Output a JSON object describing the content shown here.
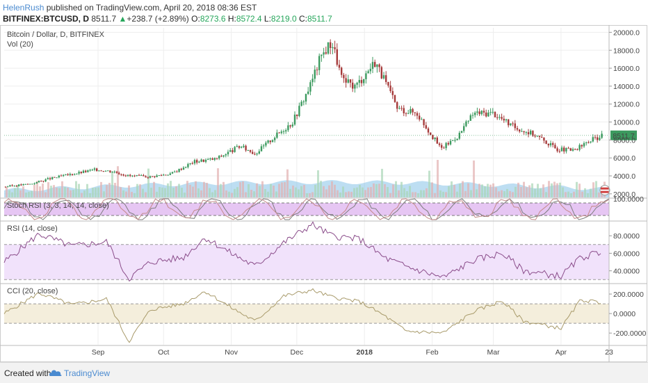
{
  "header": {
    "author": "HelenRush",
    "published": " published on TradingView.com, April 20, 2018 08:36 EST",
    "symbol": "BITFINEX:BTCUSD, D",
    "last": "8511.7",
    "change_arrow": "▲",
    "change": "+238.7 (+2.89%)",
    "o_label": "O:",
    "o_value": "8273.6",
    "h_label": "H:",
    "h_value": "8572.4",
    "l_label": "L:",
    "l_value": "8219.0",
    "c_label": "C:",
    "c_value": "8511.7"
  },
  "colors": {
    "up": "#3c9a5f",
    "down": "#a63a3a",
    "volume_ma": "#87c3e8",
    "stoch_band": "#e6c6f3",
    "rsi_band": "#f1e2fb",
    "cci_band": "#f4eedc",
    "price_tag": "#3c9a5f"
  },
  "chart_data": [
    {
      "type": "candlestick",
      "title": "Bitcoin / Dollar, D, BITFINEX",
      "subtitle": "Vol (20)",
      "xlabel": "",
      "ylabel": "",
      "x_ticks": [
        "Sep",
        "Oct",
        "Nov",
        "Dec",
        "2018",
        "Feb",
        "Mar",
        "Apr",
        "23"
      ],
      "y_ticks": [
        "20000.0",
        "18000.0",
        "16000.0",
        "14000.0",
        "12000.0",
        "10000.0",
        "8000.0",
        "6000.0",
        "4000.0",
        "2000.0"
      ],
      "ylim": [
        1600,
        20500
      ],
      "last_price_label": "8511.7",
      "last_price": 8511.7,
      "series": [
        {
          "name": "close",
          "x": [
            "Jul 20",
            "Aug 1",
            "Aug 10",
            "Aug 20",
            "Aug 31",
            "Sep 8",
            "Sep 15",
            "Sep 25",
            "Oct 5",
            "Oct 15",
            "Oct 25",
            "Nov 5",
            "Nov 12",
            "Nov 20",
            "Nov 29",
            "Dec 7",
            "Dec 12",
            "Dec 17",
            "Dec 22",
            "Dec 28",
            "Jan 6",
            "Jan 16",
            "Jan 25",
            "Feb 5",
            "Feb 13",
            "Feb 20",
            "Mar 1",
            "Mar 10",
            "Mar 20",
            "Mar 30",
            "Apr 7",
            "Apr 14",
            "Apr 20"
          ],
          "values": [
            2800,
            3100,
            3700,
            4200,
            4700,
            4500,
            4000,
            3900,
            4300,
            5600,
            5900,
            7300,
            6500,
            8200,
            10000,
            14000,
            17300,
            19000,
            14500,
            14000,
            16800,
            11500,
            11000,
            7000,
            8500,
            11000,
            11000,
            9500,
            8600,
            7000,
            6800,
            7900,
            8511.7
          ]
        }
      ]
    },
    {
      "type": "line",
      "title": "Stoch RSI (3, 3, 14, 14, close)",
      "y_ticks": [
        "100.0000"
      ],
      "ylim": [
        0,
        100
      ],
      "bands": [
        20,
        80
      ]
    },
    {
      "type": "line",
      "title": "RSI (14, close)",
      "y_ticks": [
        "80.0000",
        "60.0000",
        "40.0000"
      ],
      "ylim": [
        27,
        96
      ],
      "bands": [
        30,
        70
      ],
      "series": [
        {
          "name": "RSI",
          "x": [
            "Jul 20",
            "Aug 5",
            "Aug 20",
            "Sep 5",
            "Sep 15",
            "Sep 25",
            "Oct 10",
            "Oct 20",
            "Nov 1",
            "Nov 12",
            "Nov 25",
            "Dec 8",
            "Dec 17",
            "Dec 30",
            "Jan 10",
            "Jan 20",
            "Feb 6",
            "Feb 20",
            "Mar 5",
            "Mar 15",
            "Apr 1",
            "Apr 10",
            "Apr 20"
          ],
          "values": [
            50,
            82,
            68,
            73,
            31,
            50,
            55,
            78,
            60,
            45,
            72,
            93,
            80,
            76,
            55,
            45,
            32,
            52,
            60,
            40,
            34,
            55,
            62
          ]
        }
      ]
    },
    {
      "type": "line",
      "title": "CCI (20, close)",
      "y_ticks": [
        "200.0000",
        "0.0000",
        "-200.0000"
      ],
      "ylim": [
        -320,
        300
      ],
      "bands": [
        -100,
        100
      ],
      "series": [
        {
          "name": "CCI",
          "x": [
            "Jul 20",
            "Aug 5",
            "Aug 20",
            "Sep 5",
            "Sep 15",
            "Sep 25",
            "Oct 10",
            "Oct 20",
            "Nov 1",
            "Nov 12",
            "Nov 25",
            "Dec 8",
            "Dec 17",
            "Dec 30",
            "Jan 10",
            "Jan 20",
            "Feb 6",
            "Feb 20",
            "Mar 5",
            "Mar 15",
            "Apr 1",
            "Apr 10",
            "Apr 20"
          ],
          "values": [
            0,
            210,
            90,
            150,
            -290,
            40,
            100,
            230,
            60,
            -80,
            180,
            240,
            170,
            120,
            -20,
            -180,
            -200,
            20,
            130,
            -80,
            -150,
            140,
            110
          ]
        }
      ]
    }
  ],
  "footer": {
    "created_with": "Created with",
    "brand": "TradingView",
    "logo_icon": "tradingview-cloud-icon"
  }
}
